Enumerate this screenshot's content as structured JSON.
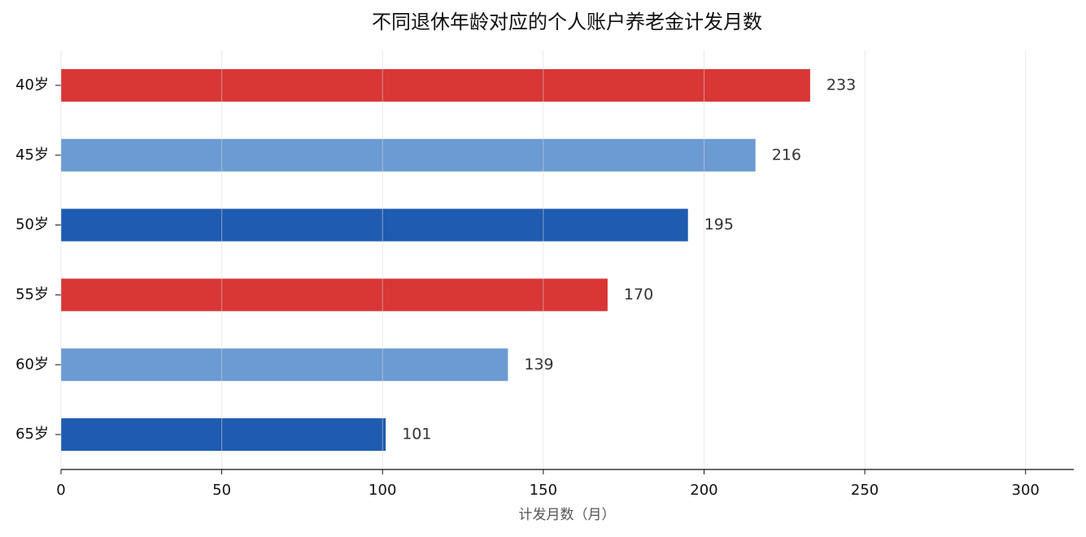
{
  "chart_data": {
    "type": "barh",
    "title": "不同退休年龄对应的个人账户养老金计发月数",
    "x_label": "计发月数（月）",
    "categories": [
      "40岁",
      "45岁",
      "50岁",
      "55岁",
      "60岁",
      "65岁"
    ],
    "values": [
      233,
      216,
      195,
      170,
      139,
      101
    ],
    "colors": [
      "#d93636",
      "#6b9bd2",
      "#1f5bb0",
      "#d93636",
      "#6b9bd2",
      "#1f5bb0"
    ],
    "xlim": [
      0,
      315
    ],
    "xticks": [
      0,
      50,
      100,
      150,
      200,
      250,
      300
    ],
    "grid": true
  }
}
